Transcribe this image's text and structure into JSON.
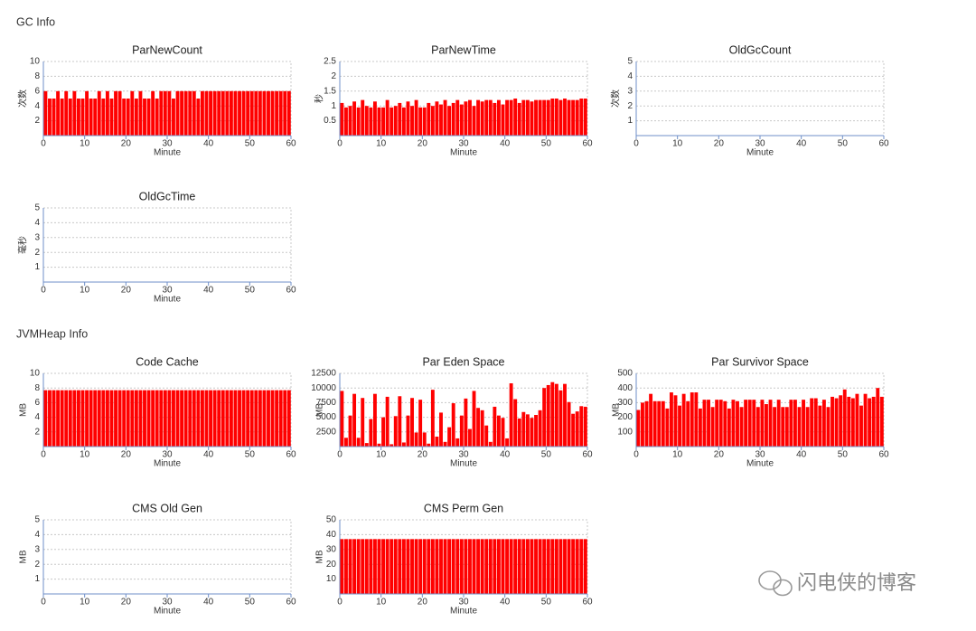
{
  "sections": [
    {
      "title": "GC Info"
    },
    {
      "title": "JVMHeap Info"
    }
  ],
  "watermark": "闪电侠的博客",
  "chart_data": [
    {
      "type": "bar",
      "title": "ParNewCount",
      "y_label": "次数",
      "x_label": "Minute",
      "color": "#ff0000",
      "grid": true,
      "xlim": [
        0,
        60
      ],
      "xticks": [
        0,
        10,
        20,
        30,
        40,
        50,
        60
      ],
      "ylim": [
        0,
        10
      ],
      "yticks": [
        2,
        4,
        6,
        8,
        10
      ],
      "x": [
        1,
        2,
        3,
        4,
        5,
        6,
        7,
        8,
        9,
        10,
        11,
        12,
        13,
        14,
        15,
        16,
        17,
        18,
        19,
        20,
        21,
        22,
        23,
        24,
        25,
        26,
        27,
        28,
        29,
        30,
        31,
        32,
        33,
        34,
        35,
        36,
        37,
        38,
        39,
        40,
        41,
        42,
        43,
        44,
        45,
        46,
        47,
        48,
        49,
        50,
        51,
        52,
        53,
        54,
        55,
        56,
        57,
        58,
        59,
        60
      ],
      "values": [
        6,
        5,
        5,
        6,
        5,
        6,
        5,
        6,
        5,
        5,
        6,
        5,
        5,
        6,
        5,
        6,
        5,
        6,
        6,
        5,
        5,
        6,
        5,
        6,
        5,
        5,
        6,
        5,
        6,
        6,
        6,
        5,
        6,
        6,
        6,
        6,
        6,
        5,
        6,
        6,
        6,
        6,
        6,
        6,
        6,
        6,
        6,
        6,
        6,
        6,
        6,
        6,
        6,
        6,
        6,
        6,
        6,
        6,
        6,
        6
      ]
    },
    {
      "type": "bar",
      "title": "ParNewTime",
      "y_label": "秒",
      "x_label": "Minute",
      "color": "#ff0000",
      "grid": true,
      "xlim": [
        0,
        60
      ],
      "xticks": [
        0,
        10,
        20,
        30,
        40,
        50,
        60
      ],
      "ylim": [
        0,
        2.5
      ],
      "yticks": [
        0.5,
        1,
        1.5,
        2,
        2.5
      ],
      "x": [
        1,
        2,
        3,
        4,
        5,
        6,
        7,
        8,
        9,
        10,
        11,
        12,
        13,
        14,
        15,
        16,
        17,
        18,
        19,
        20,
        21,
        22,
        23,
        24,
        25,
        26,
        27,
        28,
        29,
        30,
        31,
        32,
        33,
        34,
        35,
        36,
        37,
        38,
        39,
        40,
        41,
        42,
        43,
        44,
        45,
        46,
        47,
        48,
        49,
        50,
        51,
        52,
        53,
        54,
        55,
        56,
        57,
        58,
        59,
        60
      ],
      "values": [
        1.1,
        0.95,
        1.0,
        1.15,
        0.95,
        1.2,
        1.0,
        0.95,
        1.15,
        0.95,
        0.95,
        1.2,
        0.95,
        1.0,
        1.1,
        0.95,
        1.15,
        1.0,
        1.2,
        0.95,
        0.95,
        1.1,
        1.0,
        1.15,
        1.05,
        1.2,
        1.0,
        1.1,
        1.2,
        1.05,
        1.15,
        1.2,
        1.0,
        1.2,
        1.15,
        1.2,
        1.2,
        1.1,
        1.2,
        1.05,
        1.2,
        1.2,
        1.25,
        1.1,
        1.2,
        1.2,
        1.15,
        1.2,
        1.2,
        1.2,
        1.2,
        1.25,
        1.25,
        1.2,
        1.25,
        1.2,
        1.2,
        1.2,
        1.25,
        1.25
      ]
    },
    {
      "type": "bar",
      "title": "OldGcCount",
      "y_label": "次数",
      "x_label": "Minute",
      "color": "#ff0000",
      "grid": true,
      "xlim": [
        0,
        60
      ],
      "xticks": [
        0,
        10,
        20,
        30,
        40,
        50,
        60
      ],
      "ylim": [
        0,
        5
      ],
      "yticks": [
        1,
        2,
        3,
        4,
        5
      ],
      "x": [
        1,
        2,
        3,
        4,
        5,
        6,
        7,
        8,
        9,
        10,
        11,
        12,
        13,
        14,
        15,
        16,
        17,
        18,
        19,
        20,
        21,
        22,
        23,
        24,
        25,
        26,
        27,
        28,
        29,
        30,
        31,
        32,
        33,
        34,
        35,
        36,
        37,
        38,
        39,
        40,
        41,
        42,
        43,
        44,
        45,
        46,
        47,
        48,
        49,
        50,
        51,
        52,
        53,
        54,
        55,
        56,
        57,
        58,
        59,
        60
      ],
      "values": [
        0,
        0,
        0,
        0,
        0,
        0,
        0,
        0,
        0,
        0,
        0,
        0,
        0,
        0,
        0,
        0,
        0,
        0,
        0,
        0,
        0,
        0,
        0,
        0,
        0,
        0,
        0,
        0,
        0,
        0,
        0,
        0,
        0,
        0,
        0,
        0,
        0,
        0,
        0,
        0,
        0,
        0,
        0,
        0,
        0,
        0,
        0,
        0,
        0,
        0,
        0,
        0,
        0,
        0,
        0,
        0,
        0,
        0,
        0,
        0
      ]
    },
    {
      "type": "bar",
      "title": "OldGcTime",
      "y_label": "毫秒",
      "x_label": "Minute",
      "color": "#ff0000",
      "grid": true,
      "xlim": [
        0,
        60
      ],
      "xticks": [
        0,
        10,
        20,
        30,
        40,
        50,
        60
      ],
      "ylim": [
        0,
        5
      ],
      "yticks": [
        1,
        2,
        3,
        4,
        5
      ],
      "x": [
        1,
        2,
        3,
        4,
        5,
        6,
        7,
        8,
        9,
        10,
        11,
        12,
        13,
        14,
        15,
        16,
        17,
        18,
        19,
        20,
        21,
        22,
        23,
        24,
        25,
        26,
        27,
        28,
        29,
        30,
        31,
        32,
        33,
        34,
        35,
        36,
        37,
        38,
        39,
        40,
        41,
        42,
        43,
        44,
        45,
        46,
        47,
        48,
        49,
        50,
        51,
        52,
        53,
        54,
        55,
        56,
        57,
        58,
        59,
        60
      ],
      "values": [
        0,
        0,
        0,
        0,
        0,
        0,
        0,
        0,
        0,
        0,
        0,
        0,
        0,
        0,
        0,
        0,
        0,
        0,
        0,
        0,
        0,
        0,
        0,
        0,
        0,
        0,
        0,
        0,
        0,
        0,
        0,
        0,
        0,
        0,
        0,
        0,
        0,
        0,
        0,
        0,
        0,
        0,
        0,
        0,
        0,
        0,
        0,
        0,
        0,
        0,
        0,
        0,
        0,
        0,
        0,
        0,
        0,
        0,
        0,
        0
      ]
    },
    {
      "type": "bar",
      "title": "Code Cache",
      "y_label": "MB",
      "x_label": "Minute",
      "color": "#ff0000",
      "grid": true,
      "xlim": [
        0,
        60
      ],
      "xticks": [
        0,
        10,
        20,
        30,
        40,
        50,
        60
      ],
      "ylim": [
        0,
        10
      ],
      "yticks": [
        2,
        4,
        6,
        8,
        10
      ],
      "x": [
        1,
        2,
        3,
        4,
        5,
        6,
        7,
        8,
        9,
        10,
        11,
        12,
        13,
        14,
        15,
        16,
        17,
        18,
        19,
        20,
        21,
        22,
        23,
        24,
        25,
        26,
        27,
        28,
        29,
        30,
        31,
        32,
        33,
        34,
        35,
        36,
        37,
        38,
        39,
        40,
        41,
        42,
        43,
        44,
        45,
        46,
        47,
        48,
        49,
        50,
        51,
        52,
        53,
        54,
        55,
        56,
        57,
        58,
        59,
        60
      ],
      "values": [
        7.7,
        7.7,
        7.7,
        7.7,
        7.7,
        7.7,
        7.7,
        7.7,
        7.7,
        7.7,
        7.7,
        7.7,
        7.7,
        7.7,
        7.7,
        7.7,
        7.7,
        7.7,
        7.7,
        7.7,
        7.7,
        7.7,
        7.7,
        7.7,
        7.7,
        7.7,
        7.7,
        7.7,
        7.7,
        7.7,
        7.7,
        7.7,
        7.7,
        7.7,
        7.7,
        7.7,
        7.7,
        7.7,
        7.7,
        7.7,
        7.7,
        7.7,
        7.7,
        7.7,
        7.7,
        7.7,
        7.7,
        7.7,
        7.7,
        7.7,
        7.7,
        7.7,
        7.7,
        7.7,
        7.7,
        7.7,
        7.7,
        7.7,
        7.7,
        7.7
      ]
    },
    {
      "type": "bar",
      "title": "Par Eden Space",
      "y_label": "MB",
      "x_label": "Minute",
      "color": "#ff0000",
      "grid": true,
      "xlim": [
        0,
        60
      ],
      "xticks": [
        0,
        10,
        20,
        30,
        40,
        50,
        60
      ],
      "ylim": [
        0,
        12500
      ],
      "yticks": [
        2500,
        5000,
        7500,
        10000,
        12500
      ],
      "x": [
        1,
        2,
        3,
        4,
        5,
        6,
        7,
        8,
        9,
        10,
        11,
        12,
        13,
        14,
        15,
        16,
        17,
        18,
        19,
        20,
        21,
        22,
        23,
        24,
        25,
        26,
        27,
        28,
        29,
        30,
        31,
        32,
        33,
        34,
        35,
        36,
        37,
        38,
        39,
        40,
        41,
        42,
        43,
        44,
        45,
        46,
        47,
        48,
        49,
        50,
        51,
        52,
        53,
        54,
        55,
        56,
        57,
        58,
        59,
        60
      ],
      "values": [
        9500,
        1500,
        5300,
        9000,
        1500,
        8300,
        600,
        4700,
        9000,
        500,
        5000,
        8500,
        400,
        5200,
        8600,
        700,
        5300,
        8300,
        2400,
        8000,
        2400,
        500,
        9700,
        1700,
        5800,
        800,
        3300,
        7400,
        1400,
        5300,
        8200,
        3000,
        9500,
        6600,
        6200,
        3600,
        800,
        6800,
        5300,
        4900,
        1400,
        10800,
        8100,
        4800,
        5900,
        5500,
        4900,
        5400,
        6200,
        10000,
        10500,
        11000,
        10700,
        9600,
        10700,
        7600,
        5600,
        6000,
        6900,
        6800
      ]
    },
    {
      "type": "bar",
      "title": "Par Survivor Space",
      "y_label": "MB",
      "x_label": "Minute",
      "color": "#ff0000",
      "grid": true,
      "xlim": [
        0,
        60
      ],
      "xticks": [
        0,
        10,
        20,
        30,
        40,
        50,
        60
      ],
      "ylim": [
        0,
        500
      ],
      "yticks": [
        100,
        200,
        300,
        400,
        500
      ],
      "x": [
        1,
        2,
        3,
        4,
        5,
        6,
        7,
        8,
        9,
        10,
        11,
        12,
        13,
        14,
        15,
        16,
        17,
        18,
        19,
        20,
        21,
        22,
        23,
        24,
        25,
        26,
        27,
        28,
        29,
        30,
        31,
        32,
        33,
        34,
        35,
        36,
        37,
        38,
        39,
        40,
        41,
        42,
        43,
        44,
        45,
        46,
        47,
        48,
        49,
        50,
        51,
        52,
        53,
        54,
        55,
        56,
        57,
        58,
        59,
        60
      ],
      "values": [
        250,
        300,
        310,
        360,
        310,
        310,
        310,
        260,
        370,
        350,
        280,
        360,
        310,
        370,
        370,
        260,
        320,
        320,
        270,
        320,
        320,
        310,
        260,
        320,
        310,
        270,
        320,
        320,
        320,
        270,
        320,
        290,
        320,
        270,
        320,
        270,
        270,
        320,
        320,
        270,
        320,
        270,
        330,
        330,
        280,
        320,
        270,
        340,
        330,
        350,
        390,
        340,
        330,
        360,
        280,
        360,
        330,
        340,
        400,
        340
      ]
    },
    {
      "type": "bar",
      "title": "CMS Old Gen",
      "y_label": "MB",
      "x_label": "Minute",
      "color": "#ff0000",
      "grid": true,
      "xlim": [
        0,
        60
      ],
      "xticks": [
        0,
        10,
        20,
        30,
        40,
        50,
        60
      ],
      "ylim": [
        0,
        5
      ],
      "yticks": [
        1,
        2,
        3,
        4,
        5
      ],
      "x": [
        1,
        2,
        3,
        4,
        5,
        6,
        7,
        8,
        9,
        10,
        11,
        12,
        13,
        14,
        15,
        16,
        17,
        18,
        19,
        20,
        21,
        22,
        23,
        24,
        25,
        26,
        27,
        28,
        29,
        30,
        31,
        32,
        33,
        34,
        35,
        36,
        37,
        38,
        39,
        40,
        41,
        42,
        43,
        44,
        45,
        46,
        47,
        48,
        49,
        50,
        51,
        52,
        53,
        54,
        55,
        56,
        57,
        58,
        59,
        60
      ],
      "values": [
        0,
        0,
        0,
        0,
        0,
        0,
        0,
        0,
        0,
        0,
        0,
        0,
        0,
        0,
        0,
        0,
        0,
        0,
        0,
        0,
        0,
        0,
        0,
        0,
        0,
        0,
        0,
        0,
        0,
        0,
        0,
        0,
        0,
        0,
        0,
        0,
        0,
        0,
        0,
        0,
        0,
        0,
        0,
        0,
        0,
        0,
        0,
        0,
        0,
        0,
        0,
        0,
        0,
        0,
        0,
        0,
        0,
        0,
        0,
        0
      ]
    },
    {
      "type": "bar",
      "title": "CMS Perm Gen",
      "y_label": "MB",
      "x_label": "Minute",
      "color": "#ff0000",
      "grid": true,
      "xlim": [
        0,
        60
      ],
      "xticks": [
        0,
        10,
        20,
        30,
        40,
        50,
        60
      ],
      "ylim": [
        0,
        50
      ],
      "yticks": [
        10,
        20,
        30,
        40,
        50
      ],
      "x": [
        1,
        2,
        3,
        4,
        5,
        6,
        7,
        8,
        9,
        10,
        11,
        12,
        13,
        14,
        15,
        16,
        17,
        18,
        19,
        20,
        21,
        22,
        23,
        24,
        25,
        26,
        27,
        28,
        29,
        30,
        31,
        32,
        33,
        34,
        35,
        36,
        37,
        38,
        39,
        40,
        41,
        42,
        43,
        44,
        45,
        46,
        47,
        48,
        49,
        50,
        51,
        52,
        53,
        54,
        55,
        56,
        57,
        58,
        59,
        60
      ],
      "values": [
        37,
        37,
        37,
        37,
        37,
        37,
        37,
        37,
        37,
        37,
        37,
        37,
        37,
        37,
        37,
        37,
        37,
        37,
        37,
        37,
        37,
        37,
        37,
        37,
        37,
        37,
        37,
        37,
        37,
        37,
        37,
        37,
        37,
        37,
        37,
        37,
        37,
        37,
        37,
        37,
        37,
        37,
        37,
        37,
        37,
        37,
        37,
        37,
        37,
        37,
        37,
        37,
        37,
        37,
        37,
        37,
        37,
        37,
        37,
        37
      ]
    }
  ]
}
